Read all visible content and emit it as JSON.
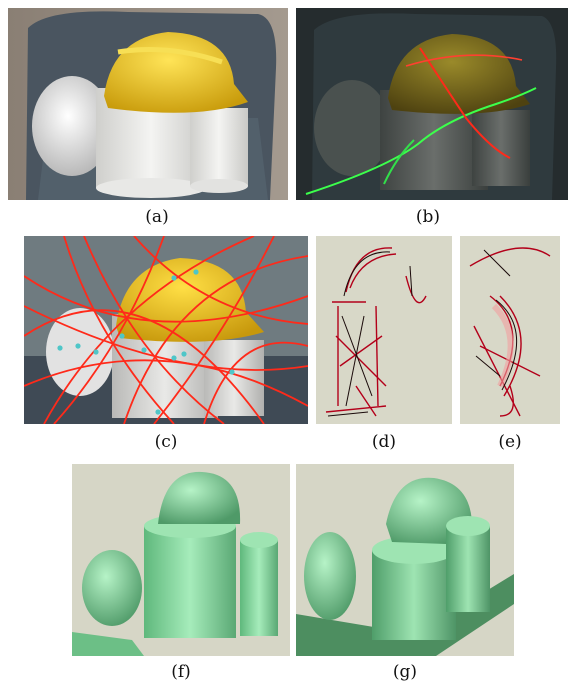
{
  "figure": {
    "panels": [
      {
        "id": "a",
        "caption": "(a)"
      },
      {
        "id": "b",
        "caption": "(b)"
      },
      {
        "id": "c",
        "caption": "(c)"
      },
      {
        "id": "d",
        "caption": "(d)"
      },
      {
        "id": "e",
        "caption": "(e)"
      },
      {
        "id": "f",
        "caption": "(f)"
      },
      {
        "id": "g",
        "caption": "(g)"
      }
    ]
  },
  "colors": {
    "helmet": "#e9c21c",
    "laser_red": "#ff2a1a",
    "laser_green": "#3cff4c",
    "mesh_green": "#8fe0a6",
    "marker_cyan": "#4fc6c8"
  }
}
